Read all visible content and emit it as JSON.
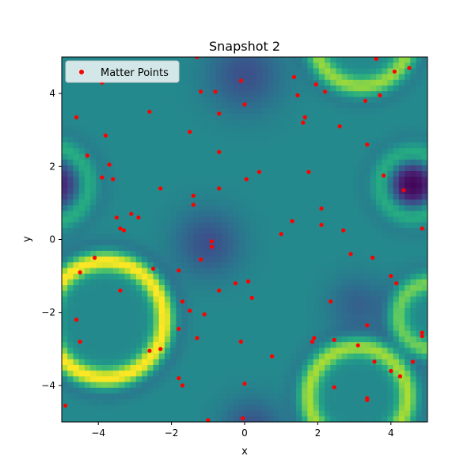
{
  "chart_data": {
    "type": "scatter",
    "title": "Snapshot 2",
    "xlabel": "x",
    "ylabel": "y",
    "xlim": [
      -5,
      5
    ],
    "ylim": [
      -5,
      5
    ],
    "xticks": [
      -4,
      -2,
      0,
      2,
      4
    ],
    "yticks": [
      -4,
      -2,
      0,
      2,
      4
    ],
    "xtick_labels": [
      "−4",
      "−2",
      "0",
      "2",
      "4"
    ],
    "ytick_labels": [
      "−4",
      "−2",
      "0",
      "2",
      "4"
    ],
    "grid": false,
    "legend_position": "top-left",
    "colormap": "viridis",
    "colors": {
      "points": "#ff0000",
      "background": "#21918c",
      "bright": "#fde725",
      "dark": "#440154"
    },
    "background_field": {
      "description_free_features": [
        {
          "kind": "ring",
          "cx": -3.8,
          "cy": -2.2,
          "r": 1.6,
          "strength": 1.0
        },
        {
          "kind": "ring",
          "cx": 3.1,
          "cy": -4.3,
          "r": 1.35,
          "strength": 0.75
        },
        {
          "kind": "ring",
          "cx": 3.2,
          "cy": 5.5,
          "r": 1.3,
          "strength": 0.7
        },
        {
          "kind": "ring",
          "cx": 5.1,
          "cy": -2.1,
          "r": 0.9,
          "strength": 0.6
        },
        {
          "kind": "ring",
          "cx": 4.6,
          "cy": 1.5,
          "r": 0.85,
          "strength": 0.45
        },
        {
          "kind": "ring",
          "cx": -5.3,
          "cy": 1.5,
          "r": 1.0,
          "strength": 0.45
        },
        {
          "kind": "dip",
          "cx": 4.6,
          "cy": 1.5,
          "r": 0.7,
          "strength": 1.0
        },
        {
          "kind": "dip",
          "cx": -5.2,
          "cy": 1.5,
          "r": 0.8,
          "strength": 0.8
        },
        {
          "kind": "dip",
          "cx": -1.0,
          "cy": -0.1,
          "r": 0.9,
          "strength": 0.5
        },
        {
          "kind": "dip",
          "cx": 0.0,
          "cy": 4.5,
          "r": 1.0,
          "strength": 0.5
        },
        {
          "kind": "dip",
          "cx": 3.1,
          "cy": -1.8,
          "r": 0.8,
          "strength": 0.35
        },
        {
          "kind": "dip",
          "cx": 0.2,
          "cy": -5.2,
          "r": 0.8,
          "strength": 0.5
        }
      ]
    },
    "series": [
      {
        "name": "Matter Points",
        "x": [
          -3.9,
          -4.6,
          -2.6,
          -3.8,
          -4.3,
          -3.7,
          -3.9,
          -3.6,
          -3.5,
          -3.1,
          -2.9,
          -3.4,
          -3.3,
          -4.1,
          -4.5,
          -2.5,
          -3.4,
          -4.6,
          -4.5,
          -2.6,
          -2.3,
          -4.9,
          -1.3,
          -0.8,
          -1.2,
          -0.7,
          -0.7,
          -2.3,
          -1.4,
          -1.4,
          -0.7,
          -0.9,
          -0.9,
          -1.8,
          -1.7,
          -1.2,
          -0.7,
          -1.5,
          -1.1,
          -1.8,
          -1.3,
          -1.8,
          -1.7,
          -1.0,
          -1.5,
          -0.1,
          0.0,
          0.4,
          0.05,
          0.1,
          -0.25,
          0.2,
          -0.1,
          0.75,
          0.0,
          -0.05,
          1.0,
          1.3,
          1.35,
          1.6,
          1.65,
          1.45,
          1.95,
          2.2,
          1.75,
          2.1,
          2.1,
          2.6,
          2.7,
          2.9,
          2.35,
          1.85,
          1.9,
          2.45,
          2.45,
          3.3,
          3.35,
          3.7,
          3.6,
          3.8,
          4.35,
          4.1,
          4.5,
          4.85,
          3.5,
          4.0,
          4.15,
          3.35,
          3.1,
          3.55,
          3.35,
          3.35,
          4.0,
          4.25,
          4.6,
          4.85,
          4.85
        ],
        "y": [
          4.3,
          3.35,
          3.5,
          2.85,
          2.3,
          2.05,
          1.7,
          1.65,
          0.6,
          0.7,
          0.6,
          0.3,
          0.25,
          -0.5,
          -0.9,
          -0.8,
          -1.4,
          -2.2,
          -2.8,
          -3.05,
          -3.0,
          -4.55,
          5.0,
          4.05,
          4.05,
          3.45,
          2.4,
          1.4,
          1.2,
          0.95,
          1.4,
          -0.05,
          -0.2,
          -0.85,
          -1.7,
          -0.55,
          -1.4,
          -1.95,
          -2.05,
          -2.45,
          -2.7,
          -3.8,
          -4.0,
          -4.95,
          2.95,
          4.35,
          3.7,
          1.85,
          1.65,
          -1.15,
          -1.2,
          -1.6,
          -2.8,
          -3.2,
          -3.95,
          -4.9,
          0.15,
          0.5,
          4.45,
          3.2,
          3.35,
          3.95,
          4.25,
          4.05,
          1.85,
          0.85,
          0.4,
          3.1,
          0.25,
          -0.4,
          -1.7,
          -2.8,
          -2.7,
          -2.75,
          -4.05,
          3.8,
          2.6,
          3.95,
          4.95,
          1.75,
          1.35,
          4.6,
          4.7,
          0.3,
          -0.5,
          -1.0,
          -1.2,
          -2.35,
          -2.9,
          -3.35,
          -4.35,
          -4.4,
          -3.6,
          -3.75,
          -3.35,
          -2.55,
          -2.65
        ]
      }
    ]
  }
}
